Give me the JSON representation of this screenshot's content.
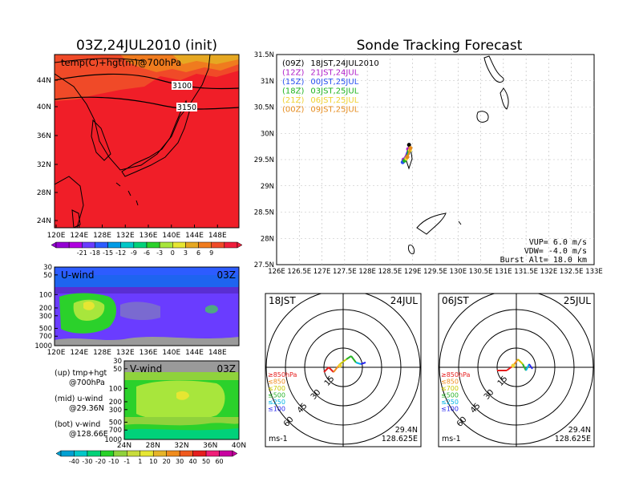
{
  "left_title": "03Z,24JUL2010 (init)",
  "right_title": "Sonde Tracking Forecast",
  "top_map": {
    "label": "temp(C)+hgt(m)@700hPa",
    "contour_labels": [
      "3100",
      "3150"
    ],
    "lat_ticks": [
      "44N",
      "40N",
      "36N",
      "32N",
      "28N",
      "24N"
    ],
    "lon_ticks": [
      "120E",
      "124E",
      "128E",
      "132E",
      "136E",
      "140E",
      "144E",
      "148E"
    ],
    "colorbar_labels": [
      "-21",
      "-18",
      "-15",
      "-12",
      "-9",
      "-6",
      "-3",
      "0",
      "3",
      "6",
      "9"
    ],
    "colorbar_colors": [
      "#9400d3",
      "#b000e0",
      "#6a3cff",
      "#2d5cff",
      "#009be6",
      "#00c8c8",
      "#00d27a",
      "#2bd12b",
      "#a8e63c",
      "#e6e632",
      "#e6a822",
      "#f07b1e",
      "#f04a28",
      "#f01e3c"
    ]
  },
  "uwind": {
    "label": "U-wind",
    "time": "03Z",
    "p_ticks": [
      "30",
      "50",
      "100",
      "200",
      "300",
      "500",
      "700",
      "1000"
    ],
    "lon_ticks": [
      "120E",
      "124E",
      "128E",
      "132E",
      "136E",
      "140E",
      "144E",
      "148E"
    ]
  },
  "vwind": {
    "label": "V-wind",
    "time": "03Z",
    "p_ticks": [
      "30",
      "50",
      "100",
      "200",
      "300",
      "500",
      "700",
      "1000"
    ],
    "lat_ticks": [
      "24N",
      "28N",
      "32N",
      "36N",
      "40N"
    ]
  },
  "legend": {
    "up": "(up) tmp+hgt",
    "up2": "@700hPa",
    "mid": "(mid) u-wind",
    "mid2": "@29.36N",
    "bot": "(bot) v-wind",
    "bot2": "@128.66E"
  },
  "wind_colorbar": {
    "labels": [
      "-40",
      "-30",
      "-20",
      "-10",
      "-1",
      "1",
      "10",
      "20",
      "30",
      "40",
      "50",
      "60"
    ],
    "colors": [
      "#00a0d2",
      "#00c8c8",
      "#00d278",
      "#28d228",
      "#8fd23c",
      "#c8dc3c",
      "#e6e632",
      "#e6b428",
      "#f08c1e",
      "#f05a1e",
      "#e61e1e",
      "#f01e78",
      "#c800a0"
    ]
  },
  "track_map": {
    "lat_ticks": [
      "31.5N",
      "31N",
      "30.5N",
      "30N",
      "29.5N",
      "29N",
      "28.5N",
      "28N",
      "27.5N"
    ],
    "lon_ticks": [
      "126E",
      "126.5E",
      "127E",
      "127.5E",
      "128E",
      "128.5E",
      "129E",
      "129.5E",
      "130E",
      "130.5E",
      "131E",
      "131.5E",
      "132E",
      "132.5E",
      "133E"
    ],
    "launches": [
      {
        "utc": "(09Z)",
        "local": "18JST,24JUL2010",
        "color": "#000000"
      },
      {
        "utc": "(12Z)",
        "local": "21JST,24JUL",
        "color": "#b01ec8"
      },
      {
        "utc": "(15Z)",
        "local": "00JST,25JUL",
        "color": "#2850f0"
      },
      {
        "utc": "(18Z)",
        "local": "03JST,25JUL",
        "color": "#1eb41e"
      },
      {
        "utc": "(21Z)",
        "local": "06JST,25JUL",
        "color": "#f0d232"
      },
      {
        "utc": "(00Z)",
        "local": "09JST,25JUL",
        "color": "#e68c1e"
      }
    ],
    "params": [
      "VUP= 6.0 m/s",
      "VDW= -4.0 m/s",
      "Burst Alt= 18.0 km"
    ]
  },
  "hodo_left": {
    "time": "18JST",
    "date": "24JUL",
    "rings": [
      "15",
      "30",
      "45",
      "60"
    ],
    "levels": [
      "≥850hPa",
      "≤850",
      "≤700",
      "≤500",
      "≤250",
      "≤100"
    ],
    "level_colors": [
      "#e61e1e",
      "#f08c1e",
      "#c8c800",
      "#28b428",
      "#00b4e6",
      "#2828f0"
    ],
    "pos": [
      "29.4N",
      "128.625E"
    ],
    "units": "ms-1"
  },
  "hodo_right": {
    "time": "06JST",
    "date": "25JUL",
    "rings": [
      "15",
      "30",
      "45",
      "60"
    ],
    "levels": [
      "≥850hPa",
      "≤850",
      "≤700",
      "≤500",
      "≤250",
      "≤100"
    ],
    "level_colors": [
      "#e61e1e",
      "#f08c1e",
      "#c8c800",
      "#28b428",
      "#00b4e6",
      "#2828f0"
    ],
    "pos": [
      "29.4N",
      "128.625E"
    ],
    "units": "ms-1"
  }
}
